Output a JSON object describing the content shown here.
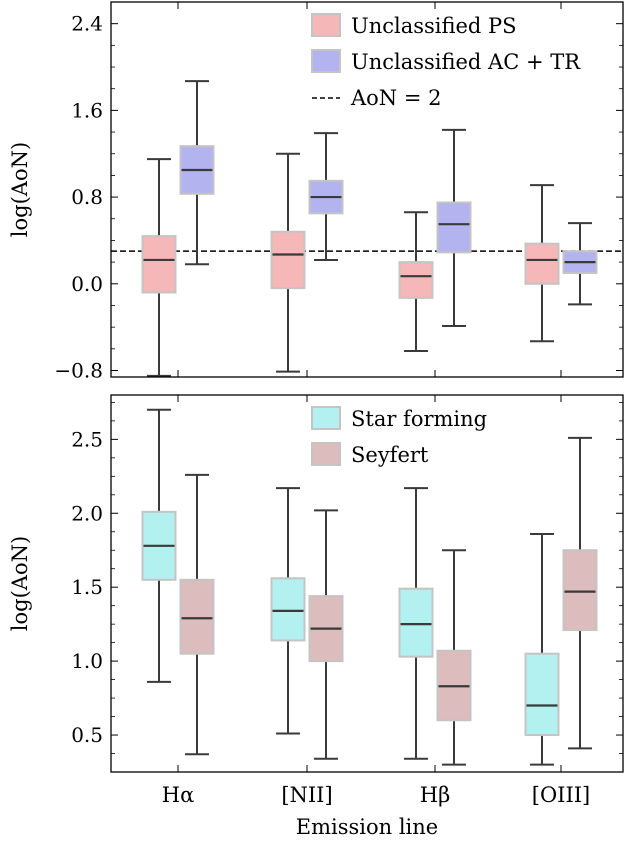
{
  "chart_data": [
    {
      "type": "box",
      "ylabel": "log(AoN)",
      "xlabel": "",
      "ylim": [
        -0.86,
        2.6
      ],
      "yticks": [
        -0.8,
        0.0,
        0.8,
        1.6,
        2.4
      ],
      "ytick_labels": [
        "−0.8",
        "0.0",
        "0.8",
        "1.6",
        "2.4"
      ],
      "categories": [
        "Hα",
        "[NII]",
        "Hβ",
        "[OIII]"
      ],
      "reference_line": {
        "y": 0.301,
        "style": "dashed",
        "label": "AoN = 2"
      },
      "legend": {
        "position": "top-right"
      },
      "series": [
        {
          "name": "Unclassified PS",
          "color": "#f5b7b7",
          "boxes": [
            {
              "whislo": -0.85,
              "q1": -0.08,
              "med": 0.22,
              "q3": 0.44,
              "whishi": 1.15
            },
            {
              "whislo": -0.81,
              "q1": -0.04,
              "med": 0.27,
              "q3": 0.48,
              "whishi": 1.2
            },
            {
              "whislo": -0.62,
              "q1": -0.13,
              "med": 0.07,
              "q3": 0.2,
              "whishi": 0.66
            },
            {
              "whislo": -0.53,
              "q1": 0.0,
              "med": 0.22,
              "q3": 0.37,
              "whishi": 0.91
            }
          ]
        },
        {
          "name": "Unclassified AC + TR",
          "color": "#b3b3f0",
          "boxes": [
            {
              "whislo": 0.18,
              "q1": 0.83,
              "med": 1.05,
              "q3": 1.27,
              "whishi": 1.87
            },
            {
              "whislo": 0.22,
              "q1": 0.65,
              "med": 0.8,
              "q3": 0.95,
              "whishi": 1.39
            },
            {
              "whislo": -0.39,
              "q1": 0.29,
              "med": 0.55,
              "q3": 0.75,
              "whishi": 1.42
            },
            {
              "whislo": -0.19,
              "q1": 0.1,
              "med": 0.2,
              "q3": 0.3,
              "whishi": 0.56
            }
          ]
        }
      ]
    },
    {
      "type": "box",
      "ylabel": "log(AoN)",
      "xlabel": "Emission line",
      "ylim": [
        0.25,
        2.8
      ],
      "yticks": [
        0.5,
        1.0,
        1.5,
        2.0,
        2.5
      ],
      "ytick_labels": [
        "0.5",
        "1.0",
        "1.5",
        "2.0",
        "2.5"
      ],
      "categories": [
        "Hα",
        "[NII]",
        "Hβ",
        "[OIII]"
      ],
      "legend": {
        "position": "top-right"
      },
      "series": [
        {
          "name": "Star forming",
          "color": "#b3f0f0",
          "boxes": [
            {
              "whislo": 0.86,
              "q1": 1.55,
              "med": 1.78,
              "q3": 2.01,
              "whishi": 2.7
            },
            {
              "whislo": 0.51,
              "q1": 1.14,
              "med": 1.34,
              "q3": 1.56,
              "whishi": 2.17
            },
            {
              "whislo": 0.34,
              "q1": 1.03,
              "med": 1.25,
              "q3": 1.49,
              "whishi": 2.17
            },
            {
              "whislo": 0.3,
              "q1": 0.5,
              "med": 0.7,
              "q3": 1.05,
              "whishi": 1.86
            }
          ]
        },
        {
          "name": "Seyfert",
          "color": "#dcbcbc",
          "boxes": [
            {
              "whislo": 0.37,
              "q1": 1.05,
              "med": 1.29,
              "q3": 1.55,
              "whishi": 2.26
            },
            {
              "whislo": 0.34,
              "q1": 1.0,
              "med": 1.22,
              "q3": 1.44,
              "whishi": 2.02
            },
            {
              "whislo": 0.3,
              "q1": 0.6,
              "med": 0.83,
              "q3": 1.07,
              "whishi": 1.75
            },
            {
              "whislo": 0.41,
              "q1": 1.21,
              "med": 1.47,
              "q3": 1.75,
              "whishi": 2.51
            }
          ]
        }
      ]
    }
  ]
}
